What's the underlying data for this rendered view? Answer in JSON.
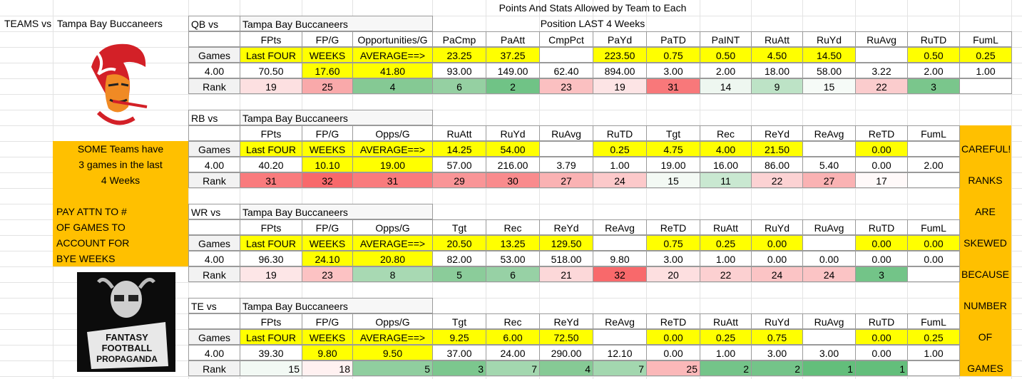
{
  "title_line1": "Points And Stats Allowed by Team to Each",
  "title_line2": "Position LAST  4 Weeks",
  "teams_label": "TEAMS vs",
  "team": "Tampa Bay Buccaneers",
  "highlight_color": "#ffff00",
  "left_note": {
    "fill": "#ffc000",
    "lines": [
      "SOME Teams have",
      "3 games in the last",
      "4 Weeks",
      "PAY ATTN TO #",
      "OF GAMES TO",
      "ACCOUNT FOR",
      "BYE WEEKS"
    ]
  },
  "right_note": {
    "fill": "#ffc000",
    "lines": [
      "CAREFUL!",
      "RANKS",
      "ARE",
      "SKEWED",
      "BECAUSE",
      "NUMBER",
      "OF",
      "GAMES"
    ]
  },
  "goat_image_text": [
    "FANTASY",
    "FOOTBALL",
    "PROPAGANDA"
  ],
  "sections": [
    {
      "label": "QB vs",
      "team": "Tampa Bay Buccaneers",
      "headers": [
        "FPts",
        "FP/G",
        "Opportunities/G",
        "PaCmp",
        "PaAtt",
        "CmpPct",
        "PaYd",
        "PaTD",
        "PaINT",
        "RuAtt",
        "RuYd",
        "RuAvg",
        "RuTD",
        "FumL"
      ],
      "games_label": "Games",
      "games": [
        "Last FOUR",
        "WEEKS",
        "AVERAGE==>",
        "23.25",
        "37.25",
        null,
        "223.50",
        "0.75",
        "0.50",
        "4.50",
        "14.50",
        null,
        "0.50",
        "0.25"
      ],
      "count": "4.00",
      "values": [
        "70.50",
        "17.60",
        "41.80",
        "93.00",
        "149.00",
        "62.40",
        "894.00",
        "3.00",
        "2.00",
        "18.00",
        "58.00",
        "3.22",
        "2.00",
        "1.00"
      ],
      "value_fills": [
        null,
        "#ffff00",
        "#ffff00",
        null,
        null,
        null,
        null,
        null,
        null,
        null,
        null,
        null,
        null,
        null
      ],
      "rank_label": "Rank",
      "ranks": [
        19,
        25,
        4,
        6,
        2,
        23,
        19,
        31,
        14,
        9,
        15,
        22,
        3,
        null
      ],
      "rank_fills": [
        "#fde0e1",
        "#f9a9aa",
        "#85c994",
        "#95d0a2",
        "#70c386",
        "#fbc0c1",
        "#fde4e5",
        "#f8787a",
        "#eef7f0",
        "#bde3c6",
        "#f6fbf7",
        "#fbcccd",
        "#7ac68c",
        null
      ],
      "rank_align": "center"
    },
    {
      "label": "RB vs",
      "team": "Tampa Bay Buccaneers",
      "headers": [
        "FPts",
        "FP/G",
        "Opps/G",
        "RuAtt",
        "RuYd",
        "RuAvg",
        "RuTD",
        "Tgt",
        "Rec",
        "ReYd",
        "ReAvg",
        "ReTD",
        "FumL"
      ],
      "games_label": "Games",
      "games": [
        "Last FOUR",
        "WEEKS",
        "AVERAGE==>",
        "14.25",
        "54.00",
        null,
        "0.25",
        "4.75",
        "4.00",
        "21.50",
        null,
        "0.00",
        null
      ],
      "count": "4.00",
      "values": [
        "40.20",
        "10.10",
        "19.00",
        "57.00",
        "216.00",
        "3.79",
        "1.00",
        "19.00",
        "16.00",
        "86.00",
        "5.40",
        "0.00",
        "2.00"
      ],
      "value_fills": [
        null,
        "#ffff00",
        "#ffff00",
        null,
        null,
        null,
        null,
        null,
        null,
        null,
        null,
        null,
        null
      ],
      "rank_label": "Rank",
      "ranks": [
        31,
        32,
        31,
        29,
        30,
        27,
        24,
        15,
        11,
        22,
        27,
        17,
        null
      ],
      "rank_fills": [
        "#f97b7d",
        "#f8696b",
        "#f97b7d",
        "#f99597",
        "#f98b8d",
        "#fab2b3",
        "#fcc9ca",
        "#f3f9f4",
        "#c9e8d1",
        "#fcd2d3",
        "#fab2b3",
        "#fff9f9",
        null
      ],
      "rank_align": "center"
    },
    {
      "label": "WR vs",
      "team": "Tampa Bay Buccaneers",
      "headers": [
        "FPts",
        "FP/G",
        "Opps/G",
        "Tgt",
        "Rec",
        "ReYd",
        "ReAvg",
        "ReTD",
        "RuAtt",
        "RuYd",
        "RuAvg",
        "RuTD",
        "FumL"
      ],
      "games_label": "Games",
      "games": [
        "Last FOUR",
        "WEEKS",
        "AVERAGE==>",
        "20.50",
        "13.25",
        "129.50",
        null,
        "0.75",
        "0.25",
        "0.00",
        null,
        "0.00",
        "0.00"
      ],
      "count": "4.00",
      "values": [
        "96.30",
        "24.10",
        "20.80",
        "82.00",
        "53.00",
        "518.00",
        "9.80",
        "3.00",
        "1.00",
        "0.00",
        "0.00",
        "0.00",
        "0.00"
      ],
      "value_fills": [
        null,
        "#ffff00",
        "#ffff00",
        null,
        null,
        null,
        null,
        null,
        null,
        null,
        null,
        null,
        null
      ],
      "rank_label": "Rank",
      "ranks": [
        19,
        23,
        8,
        5,
        6,
        21,
        32,
        20,
        22,
        24,
        24,
        3,
        null
      ],
      "rank_fills": [
        "#fde6e7",
        "#fcc2c3",
        "#a8d9b3",
        "#8bcc9a",
        "#97d1a5",
        "#fcd8d9",
        "#f8696b",
        "#fddfe0",
        "#fcd0d1",
        "#fbc4c5",
        "#fbc4c5",
        "#73c488",
        null
      ],
      "rank_align": "center"
    },
    {
      "label": "TE vs",
      "team": "Tampa Bay Buccaneers",
      "headers": [
        "FPts",
        "FP/G",
        "Opps/G",
        "Tgt",
        "Rec",
        "ReYd",
        "ReAvg",
        "ReTD",
        "RuAtt",
        "RuYd",
        "RuAvg",
        "RuTD",
        "FumL"
      ],
      "games_label": "Games",
      "games": [
        "Last FOUR",
        "WEEKS",
        "AVERAGE==>",
        "9.25",
        "6.00",
        "72.50",
        null,
        "0.00",
        "0.25",
        "0.75",
        null,
        "0.00",
        "0.25"
      ],
      "count": "4.00",
      "values": [
        "39.30",
        "9.80",
        "9.50",
        "37.00",
        "24.00",
        "290.00",
        "12.10",
        "0.00",
        "1.00",
        "3.00",
        "3.00",
        "0.00",
        "1.00"
      ],
      "value_fills": [
        null,
        "#ffff00",
        "#ffff00",
        null,
        null,
        null,
        null,
        null,
        null,
        null,
        null,
        null,
        null
      ],
      "rank_label": "Rank",
      "ranks": [
        15,
        18,
        5,
        3,
        7,
        4,
        7,
        25,
        2,
        2,
        1,
        1,
        null
      ],
      "rank_fills": [
        "#f2f9f4",
        "#fff1f1",
        "#90ce9f",
        "#7cc78e",
        "#a3d7af",
        "#86ca95",
        "#a3d7af",
        "#fbb8b9",
        "#74c489",
        "#74c489",
        "#63be7b",
        "#63be7b",
        null
      ],
      "rank_align": "right"
    }
  ]
}
